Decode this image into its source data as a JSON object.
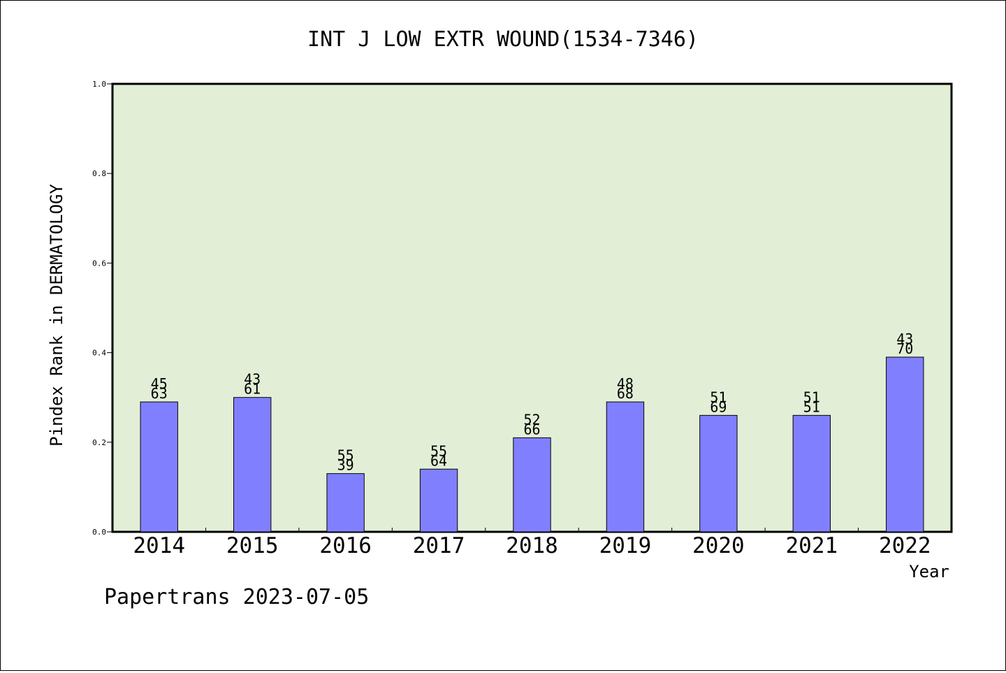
{
  "chart_data": {
    "type": "bar",
    "title": "INT J LOW EXTR WOUND(1534-7346)",
    "xlabel": "Year",
    "ylabel": "Pindex Rank in DERMATOLOGY",
    "ylim": [
      0,
      1.0
    ],
    "yticks": [
      "0.0",
      "0.2",
      "0.4",
      "0.6",
      "0.8",
      "1.0"
    ],
    "categories": [
      "2014",
      "2015",
      "2016",
      "2017",
      "2018",
      "2019",
      "2020",
      "2021",
      "2022"
    ],
    "values": [
      0.29,
      0.3,
      0.13,
      0.14,
      0.21,
      0.29,
      0.26,
      0.26,
      0.39
    ],
    "label_top": [
      "45",
      "43",
      "55",
      "55",
      "52",
      "48",
      "51",
      "51",
      "43"
    ],
    "label_bottom": [
      "63",
      "61",
      "39",
      "64",
      "66",
      "68",
      "69",
      "51",
      "70"
    ],
    "grid": false,
    "colors": {
      "plot_background": "#e2efd6",
      "bar_fill": "#8080ff",
      "bar_stroke": "#000000"
    }
  },
  "footer": {
    "credit": "Papertrans 2023-07-05"
  }
}
